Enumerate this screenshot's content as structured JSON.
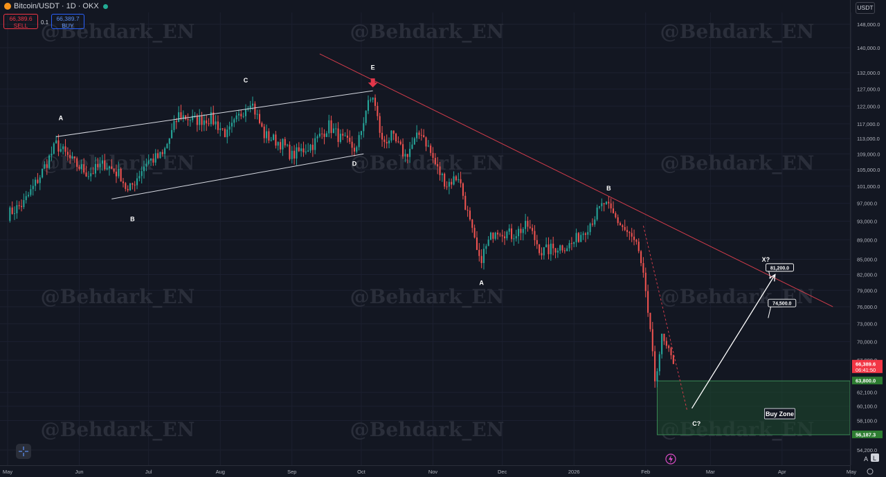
{
  "header": {
    "symbol": "Bitcoin/USDT · 1D · OKX",
    "sell_price": "66,389.6",
    "sell_label": "SELL",
    "spread": "0.1",
    "buy_price": "66,389.7",
    "buy_label": "BUY",
    "currency_button": "USDT"
  },
  "watermark": "@Behdark_EN",
  "colors": {
    "background": "#131722",
    "up_candle": "#26a69a",
    "down_candle": "#ef5350",
    "trendline": "#d23c4b",
    "buy_zone": "#1e4a2e",
    "last_price": "#f23645"
  },
  "chart_data": {
    "type": "candlestick",
    "x_tick_labels": [
      "May",
      "Jun",
      "Jul",
      "Aug",
      "Sep",
      "Oct",
      "Nov",
      "Dec",
      "2026",
      "Feb",
      "Mar",
      "Apr",
      "May"
    ],
    "y_tick_labels": [
      "148,000.0",
      "140,000.0",
      "132,000.0",
      "127,000.0",
      "122,000.0",
      "117,000.0",
      "113,000.0",
      "109,000.0",
      "105,000.0",
      "101,000.0",
      "97,000.0",
      "93,000.0",
      "89,000.0",
      "85,000.0",
      "82,000.0",
      "79,000.0",
      "76,000.0",
      "73,000.0",
      "70,000.0",
      "67,000.0",
      "62,100.0",
      "60,100.0",
      "58,100.0",
      "54,200.0"
    ],
    "y_scale": "log",
    "y_range": [
      53000,
      158000
    ],
    "date_range": [
      "2025-05-01",
      "2026-05-01"
    ],
    "price_path": [
      [
        "2025-05-01",
        94500
      ],
      [
        "2025-05-08",
        97000
      ],
      [
        "2025-05-15",
        103500
      ],
      [
        "2025-05-22",
        111500
      ],
      [
        "2025-05-29",
        107000
      ],
      [
        "2025-06-05",
        104000
      ],
      [
        "2025-06-12",
        106500
      ],
      [
        "2025-06-19",
        103500
      ],
      [
        "2025-06-22",
        99500
      ],
      [
        "2025-06-30",
        107000
      ],
      [
        "2025-07-07",
        108500
      ],
      [
        "2025-07-14",
        119500
      ],
      [
        "2025-07-21",
        118000
      ],
      [
        "2025-07-28",
        118500
      ],
      [
        "2025-08-04",
        114000
      ],
      [
        "2025-08-14",
        124000
      ],
      [
        "2025-08-20",
        114000
      ],
      [
        "2025-08-28",
        111500
      ],
      [
        "2025-09-01",
        108500
      ],
      [
        "2025-09-10",
        111500
      ],
      [
        "2025-09-17",
        116500
      ],
      [
        "2025-09-22",
        113000
      ],
      [
        "2025-09-29",
        110000
      ],
      [
        "2025-10-03",
        121000
      ],
      [
        "2025-10-06",
        125000
      ],
      [
        "2025-10-10",
        112000
      ],
      [
        "2025-10-14",
        113500
      ],
      [
        "2025-10-20",
        108500
      ],
      [
        "2025-10-27",
        115000
      ],
      [
        "2025-11-03",
        105000
      ],
      [
        "2025-11-07",
        101500
      ],
      [
        "2025-11-12",
        103500
      ],
      [
        "2025-11-21",
        84500
      ],
      [
        "2025-11-28",
        91500
      ],
      [
        "2025-12-05",
        90000
      ],
      [
        "2025-12-12",
        92000
      ],
      [
        "2025-12-18",
        86500
      ],
      [
        "2025-12-25",
        87500
      ],
      [
        "2025-12-31",
        88000
      ],
      [
        "2026-01-07",
        92000
      ],
      [
        "2026-01-14",
        97000
      ],
      [
        "2026-01-20",
        93000
      ],
      [
        "2026-01-28",
        88000
      ],
      [
        "2026-02-01",
        79000
      ],
      [
        "2026-02-05",
        64000
      ],
      [
        "2026-02-08",
        70500
      ],
      [
        "2026-02-13",
        66389.6
      ]
    ],
    "price_lines": [
      {
        "label": "66,389.6",
        "value": 66389.6
      },
      {
        "label": "63,800.0",
        "value": 63800
      },
      {
        "label": "56,187.3",
        "value": 56187.3
      }
    ],
    "countdown": "06:41:50",
    "buy_zone": {
      "label": "Buy Zone",
      "from_date": "2026-02-06",
      "top": 63800,
      "bottom": 56187.3
    },
    "targets": [
      {
        "label": "81,200.0",
        "value": 81200
      },
      {
        "label": "74,500.0",
        "value": 74500
      }
    ],
    "wave_labels": [
      {
        "text": "A",
        "date": "2025-05-24",
        "price": 118000
      },
      {
        "text": "B",
        "date": "2025-06-24",
        "price": 93000
      },
      {
        "text": "C",
        "date": "2025-08-12",
        "price": 129000
      },
      {
        "text": "D",
        "date": "2025-09-28",
        "price": 106000
      },
      {
        "text": "E",
        "date": "2025-10-06",
        "price": 133000
      },
      {
        "text": "A",
        "date": "2025-11-22",
        "price": 80000
      },
      {
        "text": "B",
        "date": "2026-01-16",
        "price": 100000
      },
      {
        "text": "C?",
        "date": "2026-02-23",
        "price": 57400
      },
      {
        "text": "X?",
        "date": "2026-03-25",
        "price": 84500
      }
    ],
    "trendline": {
      "from": [
        "2025-09-13",
        138000
      ],
      "to": [
        "2026-04-23",
        76000
      ]
    },
    "channel": [
      {
        "from": [
          "2025-05-22",
          113500
        ],
        "to": [
          "2025-10-06",
          126500
        ]
      },
      {
        "from": [
          "2025-06-15",
          98000
        ],
        "to": [
          "2025-10-02",
          109000
        ]
      }
    ],
    "projection_arrow": {
      "from": [
        "2026-02-21",
        59800
      ],
      "to": [
        "2026-03-29",
        82000
      ]
    }
  }
}
